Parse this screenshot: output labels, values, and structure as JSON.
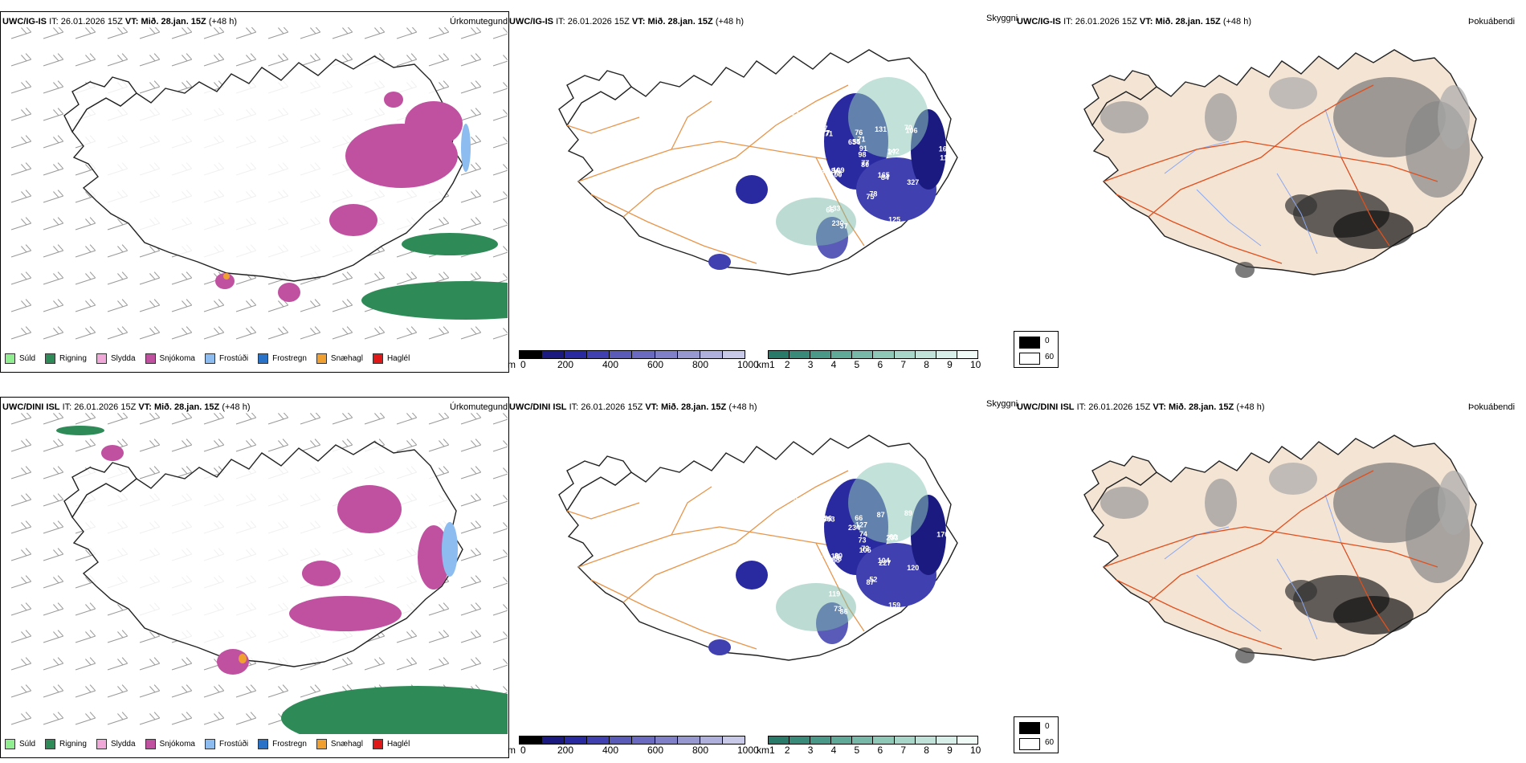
{
  "rows": [
    {
      "model": "UWC/IG-IS",
      "it_label": "IT:",
      "it": "26.01.2026 15Z",
      "vt_label": "VT:",
      "vt": "Mið. 28.jan. 15Z",
      "lead": "(+48 h)",
      "precip_title": "Úrkomutegund",
      "vis_title": "Skyggni",
      "fog_title": "Þokuábendi",
      "vis_values": [
        "77",
        "84",
        "77",
        "78",
        "98",
        "76",
        "37",
        "27",
        "109",
        "100",
        "70",
        "133",
        "48",
        "16",
        "162",
        "634",
        "327",
        "148",
        "131",
        "125",
        "121",
        "80",
        "165",
        "71",
        "75",
        "91",
        "71",
        "230",
        "142",
        "72",
        "84",
        "106",
        "65",
        "67",
        "11",
        "40",
        "55"
      ]
    },
    {
      "model": "UWC/DINI ISL",
      "it_label": "IT:",
      "it": "26.01.2026 15Z",
      "vt_label": "VT:",
      "vt": "Mið. 28.jan. 15Z",
      "lead": "(+48 h)",
      "precip_title": "Úrkomutegund",
      "vis_title": "Skyggni",
      "fog_title": "Þokuábendi",
      "vis_values": [
        "72",
        "227",
        "226",
        "52",
        "73",
        "66",
        "86",
        "233",
        "90",
        "83",
        "89",
        "119",
        "167",
        "170",
        "47",
        "234",
        "120",
        "89",
        "87",
        "159",
        "75",
        "105",
        "104",
        "903",
        "87",
        "74",
        "127",
        "73",
        "60",
        "56",
        "18"
      ]
    }
  ],
  "precip_legend": [
    {
      "label": "Súld",
      "color": "#90ee90"
    },
    {
      "label": "Rigning",
      "color": "#2e8b57"
    },
    {
      "label": "Slydda",
      "color": "#f0a8d8"
    },
    {
      "label": "Snjókoma",
      "color": "#c050a0"
    },
    {
      "label": "Frostúði",
      "color": "#8cbcf0"
    },
    {
      "label": "Frostregn",
      "color": "#2a72c8"
    },
    {
      "label": "Snæhagl",
      "color": "#f0a030"
    },
    {
      "label": "Haglél",
      "color": "#e01818"
    }
  ],
  "ceiling_bar": {
    "unit": "m",
    "ticks": [
      "0",
      "200",
      "400",
      "600",
      "800",
      "1000"
    ],
    "colors": [
      "#000000",
      "#1a1a80",
      "#2a2aa0",
      "#4040b0",
      "#5a5ab8",
      "#6a6ac0",
      "#8080c8",
      "#9898d0",
      "#b0b0dc",
      "#c8c8e8"
    ]
  },
  "vis_bar": {
    "unit": "km",
    "ticks": [
      "1",
      "2",
      "3",
      "4",
      "5",
      "6",
      "7",
      "8",
      "9",
      "10"
    ],
    "colors": [
      "#2a7a6a",
      "#3a8a7a",
      "#4a9888",
      "#60a898",
      "#78b8a8",
      "#90c8b8",
      "#a8d6c8",
      "#c0e2d8",
      "#d8eee8",
      "#f0faf6"
    ]
  },
  "fog_legend": [
    {
      "label": "0",
      "color": "#000000"
    },
    {
      "label": "60",
      "color": "#ffffff"
    }
  ]
}
